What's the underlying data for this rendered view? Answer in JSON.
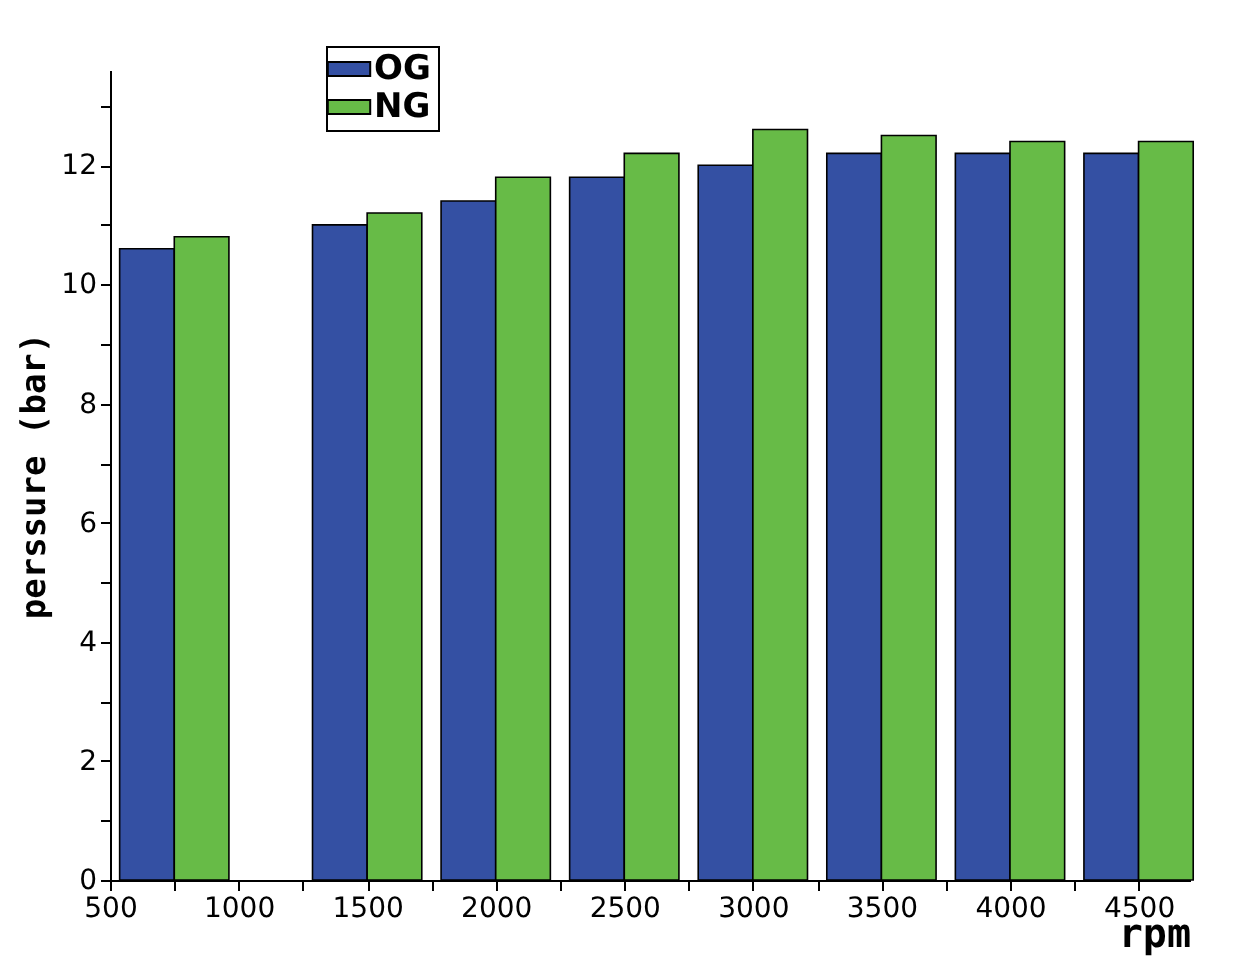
{
  "chart_data": {
    "type": "bar",
    "xlabel": "rpm",
    "ylabel": "perssure (bar)",
    "x": [
      750,
      1500,
      2000,
      2500,
      3000,
      3500,
      4000,
      4500
    ],
    "series": [
      {
        "name": "OG",
        "color": "#3450a3",
        "values": [
          10.6,
          11.0,
          11.4,
          11.8,
          12.0,
          12.2,
          12.2,
          12.2
        ]
      },
      {
        "name": "NG",
        "color": "#67bb47",
        "values": [
          10.8,
          11.2,
          11.8,
          12.2,
          12.6,
          12.5,
          12.4,
          12.4
        ]
      }
    ],
    "xlim": [
      500,
      4700
    ],
    "xticks": [
      500,
      {
        "value": 750,
        "label": null
      },
      1000,
      {
        "value": 1250,
        "label": null
      },
      1500,
      {
        "value": 1750,
        "label": null
      },
      2000,
      {
        "value": 2250,
        "label": null
      },
      2500,
      {
        "value": 2750,
        "label": null
      },
      3000,
      {
        "value": 3250,
        "label": null
      },
      3500,
      {
        "value": 3750,
        "label": null
      },
      4000,
      {
        "value": 4250,
        "label": null
      },
      4500
    ],
    "ylim": [
      0,
      13.6
    ],
    "yticks": [
      0,
      {
        "value": 1,
        "label": null
      },
      2,
      {
        "value": 3,
        "label": null
      },
      4,
      {
        "value": 5,
        "label": null
      },
      6,
      {
        "value": 7,
        "label": null
      },
      8,
      {
        "value": 9,
        "label": null
      },
      10,
      {
        "value": 11,
        "label": null
      },
      12,
      {
        "value": 13,
        "label": null
      }
    ],
    "legend": "top left",
    "grid": false
  }
}
